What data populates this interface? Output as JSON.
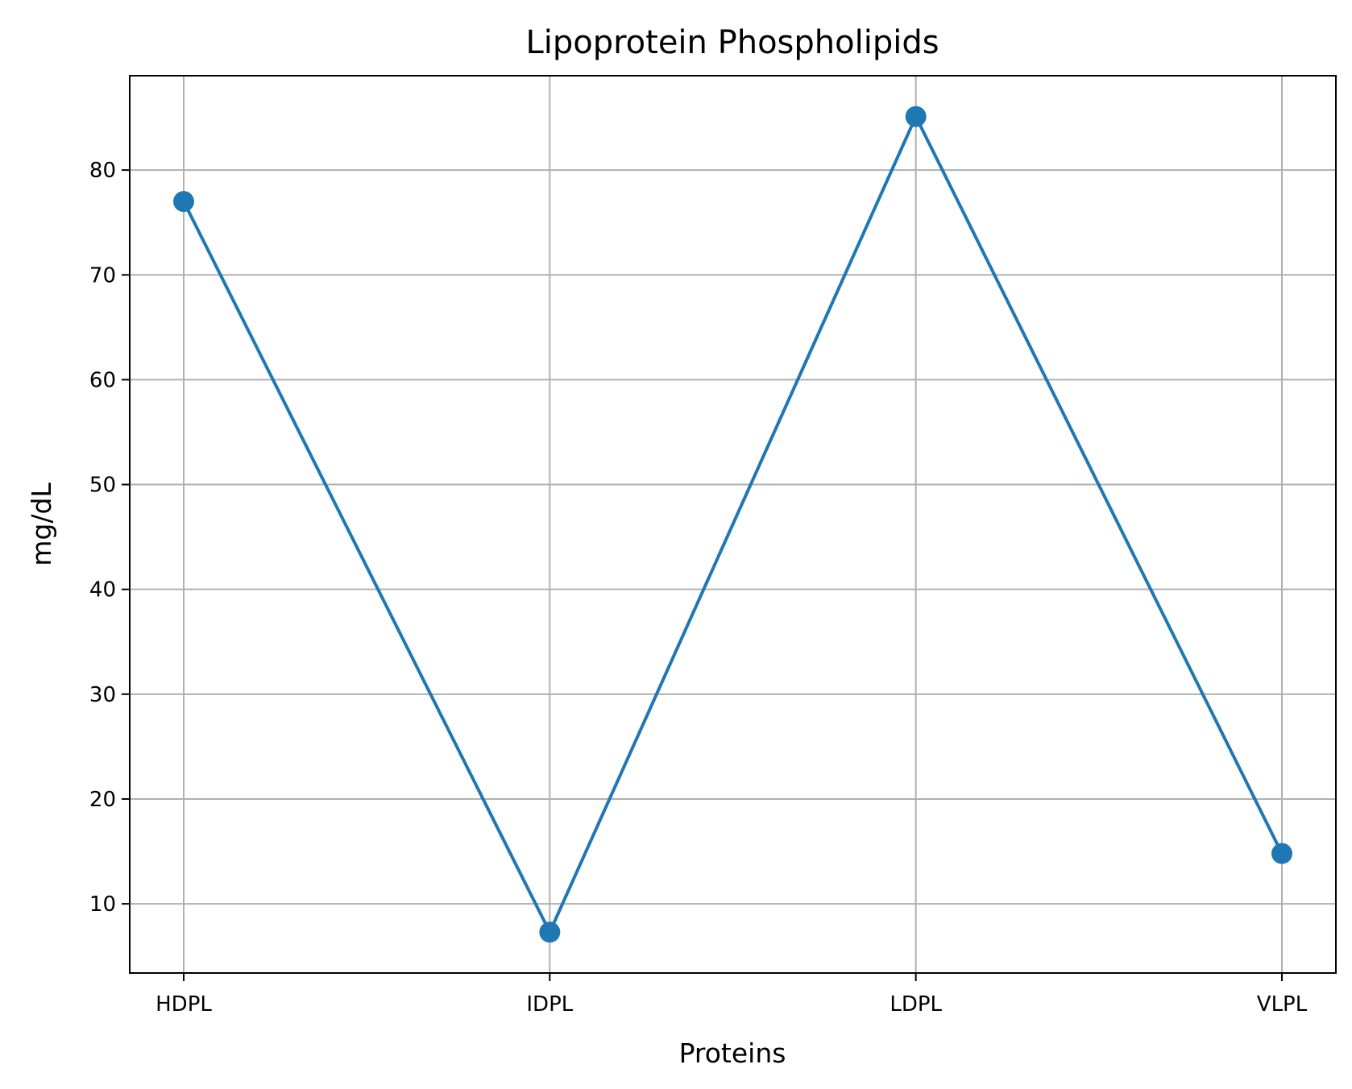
{
  "chart_data": {
    "type": "line",
    "title": "Lipoprotein Phospholipids",
    "xlabel": "Proteins",
    "ylabel": "mg/dL",
    "categories": [
      "HDPL",
      "IDPL",
      "LDPL",
      "VLPL"
    ],
    "series": [
      {
        "values": [
          77.0,
          7.3,
          85.1,
          14.8
        ],
        "color": "#1f77b4",
        "marker": "circle"
      }
    ],
    "y_ticks": [
      10,
      20,
      30,
      40,
      50,
      60,
      70,
      80
    ],
    "ylim": [
      3.4,
      89.0
    ],
    "grid": true,
    "legend": "none"
  },
  "colors": {
    "grid": "#b0b0b0",
    "axes": "#000000",
    "background": "#ffffff"
  }
}
